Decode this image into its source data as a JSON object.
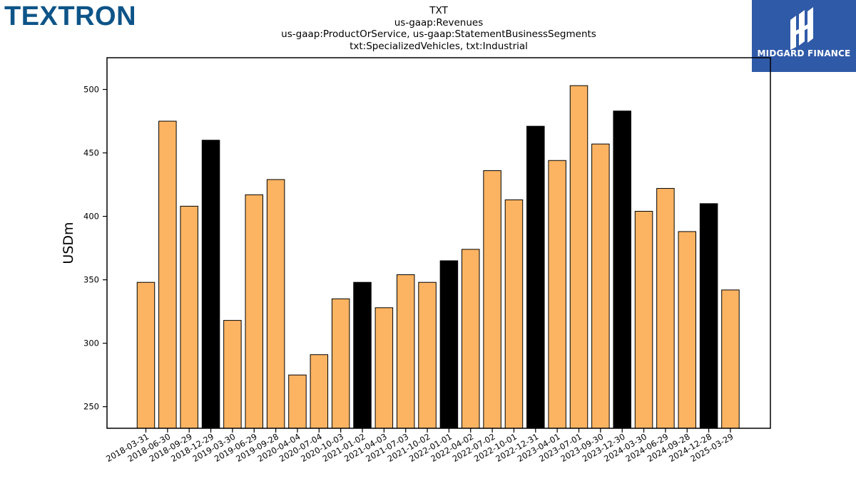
{
  "header": {
    "brand_logo": "TEXTRON",
    "partner_name": "MIDGARD FINANCE"
  },
  "colors": {
    "bar_default": "#fdb462",
    "bar_quarter_end": "#000000",
    "bar_edge": "#000000",
    "brand_blue": "#0d5488",
    "partner_bg": "#2f5aa8"
  },
  "chart_data": {
    "type": "bar",
    "title_lines": [
      "TXT",
      "us-gaap:Revenues",
      "us-gaap:ProductOrService, us-gaap:StatementBusinessSegments",
      "txt:SpecializedVehicles, txt:Industrial"
    ],
    "xlabel": "",
    "ylabel": "USDm",
    "ylim": [
      233,
      525
    ],
    "yticks": [
      250,
      300,
      350,
      400,
      450,
      500
    ],
    "grid": false,
    "categories": [
      "2018-03-31",
      "2018-06-30",
      "2018-09-29",
      "2018-12-29",
      "2019-03-30",
      "2019-06-29",
      "2019-09-28",
      "2020-04-04",
      "2020-07-04",
      "2020-10-03",
      "2021-01-02",
      "2021-04-03",
      "2021-07-03",
      "2021-10-02",
      "2022-01-01",
      "2022-04-02",
      "2022-07-02",
      "2022-10-01",
      "2022-12-31",
      "2023-04-01",
      "2023-07-01",
      "2023-09-30",
      "2023-12-30",
      "2024-03-30",
      "2024-06-29",
      "2024-09-28",
      "2024-12-28",
      "2025-03-29"
    ],
    "values": [
      348,
      475,
      408,
      460,
      318,
      417,
      429,
      275,
      291,
      335,
      348,
      328,
      354,
      348,
      365,
      374,
      436,
      413,
      471,
      444,
      503,
      457,
      483,
      404,
      422,
      388,
      410,
      342
    ],
    "highlight": [
      false,
      false,
      false,
      true,
      false,
      false,
      false,
      false,
      false,
      false,
      true,
      false,
      false,
      false,
      true,
      false,
      false,
      false,
      true,
      false,
      false,
      false,
      true,
      false,
      false,
      false,
      true,
      false
    ]
  }
}
